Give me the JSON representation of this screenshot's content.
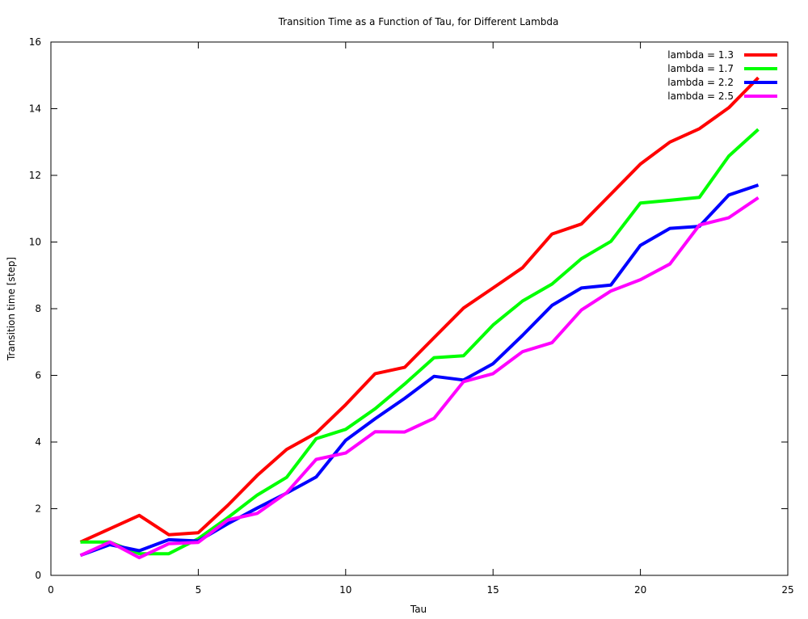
{
  "chart_data": {
    "type": "line",
    "title": "Transition Time as a Function of Tau, for Different Lambda",
    "xlabel": "Tau",
    "ylabel": "Transition time [step]",
    "xlim": [
      0,
      25
    ],
    "ylim": [
      0,
      16
    ],
    "xticks": [
      "0",
      "5",
      "10",
      "15",
      "20",
      "25"
    ],
    "yticks": [
      "0",
      "2",
      "4",
      "6",
      "8",
      "10",
      "12",
      "14",
      "16"
    ],
    "grid": false,
    "legend_position": "top-right",
    "x": [
      1,
      2,
      3,
      4,
      5,
      6,
      7,
      8,
      9,
      10,
      11,
      12,
      13,
      14,
      15,
      16,
      17,
      18,
      19,
      20,
      21,
      22,
      23,
      24
    ],
    "series": [
      {
        "name": "lambda = 1.3",
        "color": "#ff0000",
        "values": [
          1.0,
          1.4,
          1.8,
          1.22,
          1.28,
          2.1,
          3.0,
          3.78,
          4.27,
          5.12,
          6.05,
          6.24,
          7.13,
          8.02,
          8.62,
          9.23,
          10.24,
          10.54,
          11.44,
          12.34,
          13.0,
          13.4,
          14.03,
          14.93
        ]
      },
      {
        "name": "lambda = 1.7",
        "color": "#00ff00",
        "values": [
          1.0,
          1.0,
          0.65,
          0.65,
          1.1,
          1.73,
          2.41,
          2.94,
          4.1,
          4.38,
          5.0,
          5.74,
          6.53,
          6.59,
          7.51,
          8.23,
          8.74,
          9.5,
          10.02,
          11.17,
          11.25,
          11.34,
          12.58,
          13.38
        ]
      },
      {
        "name": "lambda = 2.2",
        "color": "#0000ff",
        "values": [
          0.6,
          0.92,
          0.74,
          1.07,
          1.03,
          1.55,
          2.02,
          2.47,
          2.95,
          4.05,
          4.7,
          5.31,
          5.97,
          5.86,
          6.35,
          7.2,
          8.1,
          8.62,
          8.71,
          9.9,
          10.41,
          10.47,
          11.41,
          11.71
        ]
      },
      {
        "name": "lambda = 2.5",
        "color": "#ff00ff",
        "values": [
          0.6,
          1.0,
          0.53,
          0.95,
          0.99,
          1.66,
          1.86,
          2.48,
          3.48,
          3.67,
          4.31,
          4.3,
          4.71,
          5.81,
          6.05,
          6.71,
          6.98,
          7.96,
          8.53,
          8.87,
          9.34,
          10.51,
          10.73,
          11.33
        ]
      }
    ]
  }
}
